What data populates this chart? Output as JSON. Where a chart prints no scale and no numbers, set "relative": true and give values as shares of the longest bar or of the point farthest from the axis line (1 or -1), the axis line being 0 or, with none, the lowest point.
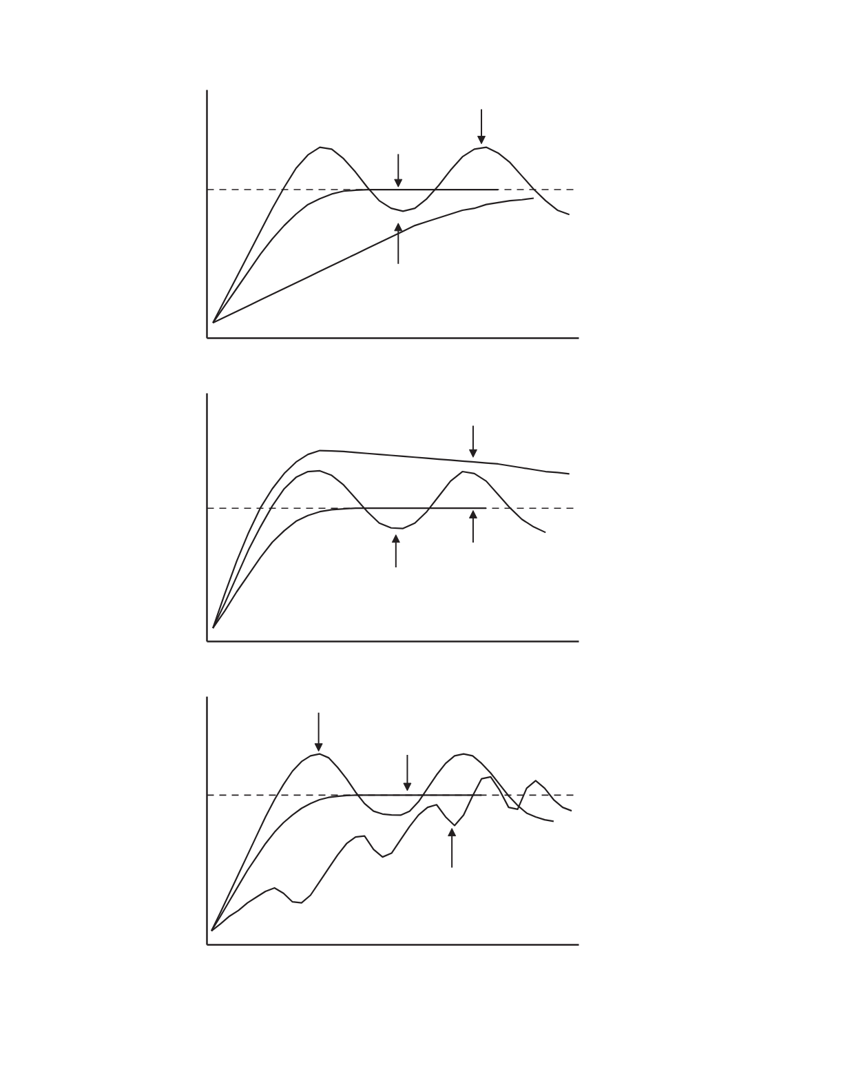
{
  "chart_data": [
    {
      "type": "line",
      "relative": true,
      "tick_labels": false,
      "categories": [
        null,
        null,
        null,
        null,
        null,
        null,
        null,
        null,
        null,
        null,
        null,
        null,
        null,
        null,
        null,
        null,
        null,
        null,
        null,
        null,
        null,
        null,
        null,
        null,
        null,
        null,
        null,
        null,
        null,
        null,
        null
      ],
      "series": [
        {
          "color": "#231f20",
          "values": [
            0.08,
            0.2,
            0.32,
            0.44,
            0.56,
            0.68,
            0.79,
            0.89,
            0.96,
            1.0,
            0.99,
            0.94,
            0.87,
            0.79,
            0.72,
            0.68,
            0.665,
            0.68,
            0.73,
            0.8,
            0.88,
            0.95,
            0.99,
            1.0,
            0.97,
            0.92,
            0.85,
            0.78,
            0.72,
            0.67,
            0.647
          ]
        },
        {
          "color": "#231f20",
          "values": [
            0.08,
            0.17,
            0.26,
            0.35,
            0.44,
            0.52,
            0.59,
            0.65,
            0.7,
            0.73,
            0.755,
            0.77,
            0.775,
            0.778,
            0.778,
            0.778,
            0.778,
            0.778,
            0.778,
            0.778,
            0.778,
            0.778,
            0.778,
            0.778,
            0.778,
            null,
            null,
            null,
            null,
            null,
            null
          ]
        },
        {
          "color": "#231f20",
          "values": [
            0.08,
            0.11,
            0.14,
            0.17,
            0.2,
            0.23,
            0.26,
            0.29,
            0.32,
            0.35,
            0.38,
            0.41,
            0.44,
            0.47,
            0.5,
            0.53,
            0.56,
            0.59,
            0.61,
            0.63,
            0.65,
            0.67,
            0.68,
            0.7,
            0.71,
            0.72,
            0.725,
            0.733,
            null,
            null,
            null
          ]
        }
      ],
      "ref_lines": [
        {
          "axis": "y",
          "value": 0.778,
          "line_style": "dashed",
          "color": "#231f20"
        }
      ]
    },
    {
      "type": "line",
      "relative": true,
      "tick_labels": false,
      "categories": [
        null,
        null,
        null,
        null,
        null,
        null,
        null,
        null,
        null,
        null,
        null,
        null,
        null,
        null,
        null,
        null,
        null,
        null,
        null,
        null,
        null,
        null,
        null,
        null,
        null,
        null,
        null,
        null,
        null,
        null,
        null
      ],
      "series": [
        {
          "color": "#231f20",
          "values": [
            0.07,
            0.25,
            0.42,
            0.57,
            0.7,
            0.8,
            0.88,
            0.94,
            0.98,
            1.0,
            0.998,
            0.995,
            0.99,
            0.985,
            0.98,
            0.975,
            0.97,
            0.965,
            0.96,
            0.955,
            0.95,
            0.945,
            0.94,
            0.935,
            0.93,
            0.92,
            0.91,
            0.9,
            0.89,
            0.885,
            0.878
          ]
        },
        {
          "color": "#231f20",
          "values": [
            0.07,
            0.2,
            0.34,
            0.48,
            0.6,
            0.71,
            0.8,
            0.86,
            0.89,
            0.894,
            0.87,
            0.82,
            0.75,
            0.68,
            0.62,
            0.595,
            0.592,
            0.62,
            0.68,
            0.76,
            0.84,
            0.89,
            0.88,
            0.84,
            0.77,
            0.7,
            0.64,
            0.6,
            0.571,
            null,
            null
          ]
        },
        {
          "color": "#231f20",
          "values": [
            0.07,
            0.16,
            0.26,
            0.35,
            0.44,
            0.52,
            0.58,
            0.63,
            0.66,
            0.68,
            0.69,
            0.695,
            0.698,
            0.698,
            0.698,
            0.698,
            0.698,
            0.698,
            0.698,
            0.698,
            0.698,
            0.698,
            0.698,
            0.698,
            null,
            null,
            null,
            null,
            null,
            null,
            null
          ]
        }
      ],
      "ref_lines": [
        {
          "axis": "y",
          "value": 0.698,
          "line_style": "dashed",
          "color": "#231f20"
        }
      ]
    },
    {
      "type": "line",
      "relative": true,
      "tick_labels": false,
      "categories": [
        null,
        null,
        null,
        null,
        null,
        null,
        null,
        null,
        null,
        null,
        null,
        null,
        null,
        null,
        null,
        null,
        null,
        null,
        null,
        null,
        null,
        null,
        null,
        null,
        null,
        null,
        null,
        null,
        null,
        null,
        null,
        null,
        null,
        null,
        null,
        null,
        null,
        null,
        null,
        null,
        null
      ],
      "series": [
        {
          "color": "#231f20",
          "values": [
            0.073,
            0.17,
            0.27,
            0.37,
            0.47,
            0.57,
            0.67,
            0.76,
            0.84,
            0.91,
            0.96,
            0.99,
            1.0,
            0.98,
            0.93,
            0.87,
            0.8,
            0.74,
            0.7,
            0.685,
            0.68,
            0.679,
            0.7,
            0.75,
            0.82,
            0.89,
            0.95,
            0.99,
            1.0,
            0.99,
            0.95,
            0.9,
            0.84,
            0.78,
            0.73,
            0.69,
            0.67,
            0.655,
            0.647,
            null,
            null
          ]
        },
        {
          "color": "#231f20",
          "values": [
            0.073,
            0.15,
            0.23,
            0.31,
            0.39,
            0.46,
            0.53,
            0.59,
            0.64,
            0.68,
            0.715,
            0.74,
            0.76,
            0.772,
            0.778,
            0.782,
            0.784,
            0.784,
            0.784,
            0.784,
            0.784,
            0.784,
            0.784,
            0.784,
            0.784,
            0.784,
            0.784,
            0.784,
            0.784,
            0.784,
            0.784,
            null,
            null,
            null,
            null,
            null,
            null,
            null,
            null,
            null,
            null
          ]
        },
        {
          "color": "#231f20",
          "values": [
            0.073,
            0.11,
            0.15,
            0.18,
            0.22,
            0.25,
            0.28,
            0.298,
            0.27,
            0.225,
            0.22,
            0.26,
            0.33,
            0.4,
            0.47,
            0.53,
            0.565,
            0.57,
            0.5,
            0.46,
            0.48,
            0.55,
            0.62,
            0.68,
            0.72,
            0.734,
            0.67,
            0.625,
            0.68,
            0.78,
            0.87,
            0.88,
            0.81,
            0.72,
            0.71,
            0.82,
            0.86,
            0.82,
            0.76,
            0.72,
            0.702
          ]
        }
      ],
      "ref_lines": [
        {
          "axis": "y",
          "value": 0.784,
          "line_style": "dashed",
          "color": "#231f20"
        }
      ]
    }
  ]
}
